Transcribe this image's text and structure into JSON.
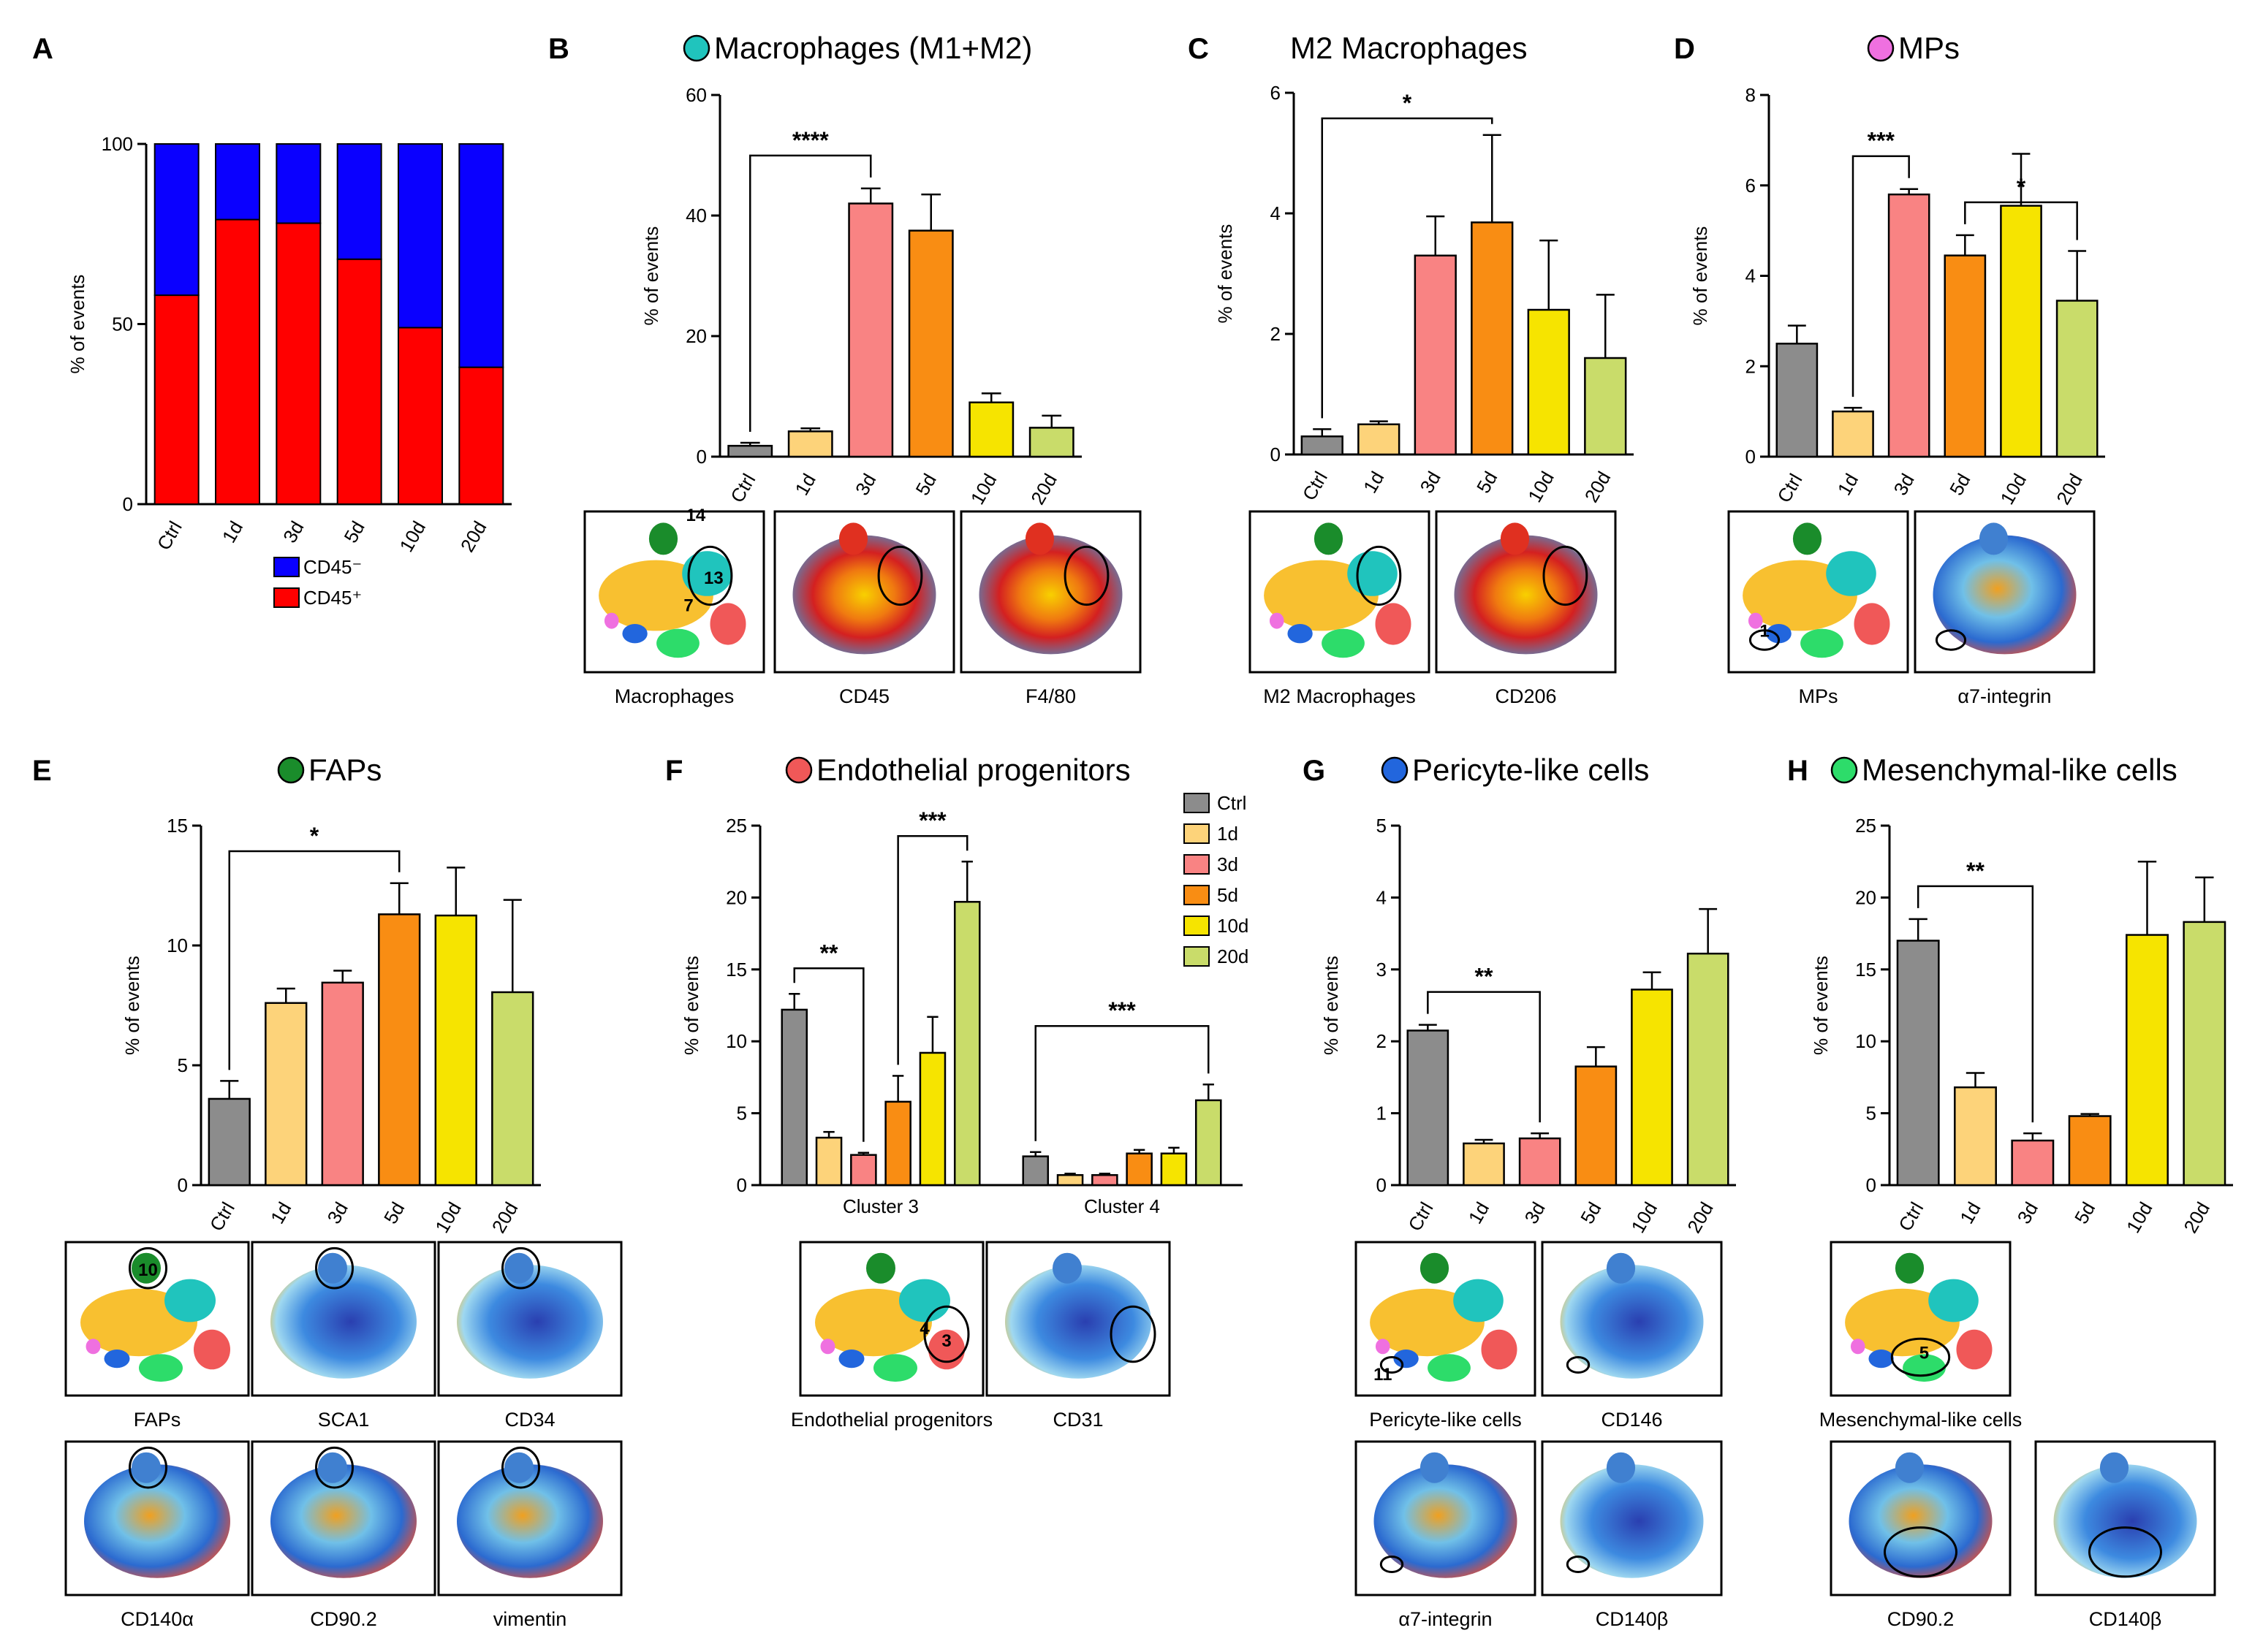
{
  "colors": {
    "ctrl": "#8c8c8c",
    "d1": "#fdd37a",
    "d3": "#f98383",
    "d5": "#f98d13",
    "d10": "#f6e400",
    "d20": "#c9dc6a",
    "cd45neg": "#0a00ff",
    "cd45pos": "#ff0000",
    "macro": "#20c4bd",
    "m2": "#20c4bd",
    "mps": "#ef70e0",
    "faps": "#1a8c2b",
    "endo": "#f05858",
    "peri": "#2266dd",
    "mesen": "#2ddc6a"
  },
  "chart_data": [
    {
      "id": "A",
      "letter": "A",
      "type": "bar",
      "stacked": true,
      "title": "",
      "ylabel": "% of events",
      "ylim": [
        0,
        100
      ],
      "yticks": [
        0,
        50,
        100
      ],
      "categories": [
        "Ctrl",
        "1d",
        "3d",
        "5d",
        "10d",
        "20d"
      ],
      "series": [
        {
          "name": "CD45⁺",
          "values": [
            58,
            79,
            78,
            68,
            49,
            38
          ]
        },
        {
          "name": "CD45⁻",
          "values": [
            42,
            21,
            22,
            32,
            51,
            62
          ]
        }
      ],
      "legend": [
        {
          "label": "CD45⁻",
          "color": "#0a00ff"
        },
        {
          "label": "CD45⁺",
          "color": "#ff0000"
        }
      ]
    },
    {
      "id": "B",
      "letter": "B",
      "type": "bar",
      "title": "Macrophages (M1+M2)",
      "dot": "#20c4bd",
      "ylabel": "% of events",
      "ylim": [
        0,
        60
      ],
      "yticks": [
        0,
        20,
        40,
        60
      ],
      "categories": [
        "Ctrl",
        "1d",
        "3d",
        "5d",
        "10d",
        "20d"
      ],
      "values": [
        1.8,
        4.2,
        42,
        37.5,
        9,
        4.8
      ],
      "errors": [
        0.5,
        0.5,
        2.5,
        6,
        1.5,
        2
      ],
      "sig": [
        {
          "from": 0,
          "to": 2,
          "label": "****"
        }
      ],
      "maps": [
        "Macrophages",
        "CD45",
        "F4/80"
      ],
      "clusters": [
        "14",
        "13",
        "7"
      ]
    },
    {
      "id": "C",
      "letter": "C",
      "type": "bar",
      "title": "M2 Macrophages",
      "ylabel": "% of events",
      "ylim": [
        0,
        6
      ],
      "yticks": [
        0,
        2,
        4,
        6
      ],
      "categories": [
        "Ctrl",
        "1d",
        "3d",
        "5d",
        "10d",
        "20d"
      ],
      "values": [
        0.3,
        0.5,
        3.3,
        3.85,
        2.4,
        1.6
      ],
      "errors": [
        0.12,
        0.05,
        0.65,
        1.45,
        1.15,
        1.05
      ],
      "sig": [
        {
          "from": 0,
          "to": 3,
          "label": "*"
        }
      ],
      "maps": [
        "M2 Macrophages",
        "CD206"
      ]
    },
    {
      "id": "D",
      "letter": "D",
      "type": "bar",
      "title": "MPs",
      "dot": "#ef70e0",
      "ylabel": "% of events",
      "ylim": [
        0,
        8
      ],
      "yticks": [
        0,
        2,
        4,
        6,
        8
      ],
      "categories": [
        "Ctrl",
        "1d",
        "3d",
        "5d",
        "10d",
        "20d"
      ],
      "values": [
        2.5,
        1.0,
        5.8,
        4.45,
        5.55,
        3.45
      ],
      "errors": [
        0.4,
        0.08,
        0.12,
        0.45,
        1.15,
        1.1
      ],
      "sig": [
        {
          "from": 1,
          "to": 2,
          "label": "***"
        },
        {
          "from": 3,
          "to": 5,
          "label": "*"
        }
      ],
      "maps": [
        "MPs",
        "α7-integrin"
      ],
      "clusters": [
        "1"
      ]
    },
    {
      "id": "E",
      "letter": "E",
      "type": "bar",
      "title": "FAPs",
      "dot": "#1a8c2b",
      "ylabel": "% of events",
      "ylim": [
        0,
        15
      ],
      "yticks": [
        0,
        5,
        10,
        15
      ],
      "categories": [
        "Ctrl",
        "1d",
        "3d",
        "5d",
        "10d",
        "20d"
      ],
      "values": [
        3.6,
        7.6,
        8.45,
        11.3,
        11.25,
        8.05
      ],
      "errors": [
        0.75,
        0.6,
        0.5,
        1.3,
        2.0,
        3.85
      ],
      "sig": [
        {
          "from": 0,
          "to": 3,
          "label": "*"
        }
      ],
      "maps": [
        "FAPs",
        "SCA1",
        "CD34",
        "CD140α",
        "CD90.2",
        "vimentin"
      ],
      "clusters": [
        "10"
      ]
    },
    {
      "id": "F",
      "letter": "F",
      "type": "bar",
      "title": "Endothelial progenitors",
      "dot": "#f05858",
      "ylabel": "% of events",
      "ylim": [
        0,
        25
      ],
      "yticks": [
        0,
        5,
        10,
        15,
        20,
        25
      ],
      "categories": [
        "Cluster 3",
        "Cluster 4"
      ],
      "series": [
        {
          "name": "Ctrl",
          "values": [
            12.2,
            2.0
          ],
          "errors": [
            1.1,
            0.3
          ]
        },
        {
          "name": "1d",
          "values": [
            3.3,
            0.7
          ],
          "errors": [
            0.4,
            0.1
          ]
        },
        {
          "name": "3d",
          "values": [
            2.1,
            0.7
          ],
          "errors": [
            0.15,
            0.1
          ]
        },
        {
          "name": "5d",
          "values": [
            5.8,
            2.2
          ],
          "errors": [
            1.8,
            0.25
          ]
        },
        {
          "name": "10d",
          "values": [
            9.2,
            2.2
          ],
          "errors": [
            2.5,
            0.4
          ]
        },
        {
          "name": "20d",
          "values": [
            19.7,
            5.9
          ],
          "errors": [
            2.8,
            1.1
          ]
        }
      ],
      "sig": [
        {
          "cat": 0,
          "from": 0,
          "to": 2,
          "label": "**"
        },
        {
          "cat": 0,
          "from": 3,
          "to": 5,
          "label": "***"
        },
        {
          "cat": 1,
          "from": 0,
          "to": 5,
          "label": "***"
        }
      ],
      "maps": [
        "Endothelial progenitors",
        "CD31"
      ],
      "clusters": [
        "4",
        "3"
      ]
    },
    {
      "id": "G",
      "letter": "G",
      "type": "bar",
      "title": "Pericyte-like cells",
      "dot": "#2266dd",
      "ylabel": "% of events",
      "ylim": [
        0,
        5
      ],
      "yticks": [
        0,
        1,
        2,
        3,
        4,
        5
      ],
      "categories": [
        "Ctrl",
        "1d",
        "3d",
        "5d",
        "10d",
        "20d"
      ],
      "values": [
        2.15,
        0.58,
        0.65,
        1.65,
        2.72,
        3.22
      ],
      "errors": [
        0.08,
        0.05,
        0.07,
        0.27,
        0.24,
        0.62
      ],
      "sig": [
        {
          "from": 0,
          "to": 2,
          "label": "**"
        }
      ],
      "maps": [
        "Pericyte-like cells",
        "CD146",
        "α7-integrin",
        "CD140β"
      ],
      "clusters": [
        "11"
      ]
    },
    {
      "id": "H",
      "letter": "H",
      "type": "bar",
      "title": "Mesenchymal-like cells",
      "dot": "#2ddc6a",
      "ylabel": "% of events",
      "ylim": [
        0,
        25
      ],
      "yticks": [
        0,
        5,
        10,
        15,
        20,
        25
      ],
      "categories": [
        "Ctrl",
        "1d",
        "3d",
        "5d",
        "10d",
        "20d"
      ],
      "values": [
        17.0,
        6.8,
        3.1,
        4.8,
        17.4,
        18.3
      ],
      "errors": [
        1.5,
        1.0,
        0.5,
        0.15,
        5.1,
        3.1
      ],
      "sig": [
        {
          "from": 0,
          "to": 2,
          "label": "**"
        }
      ],
      "maps": [
        "Mesenchymal-like cells",
        "CD90.2",
        "CD140β"
      ],
      "clusters": [
        "5"
      ]
    }
  ]
}
